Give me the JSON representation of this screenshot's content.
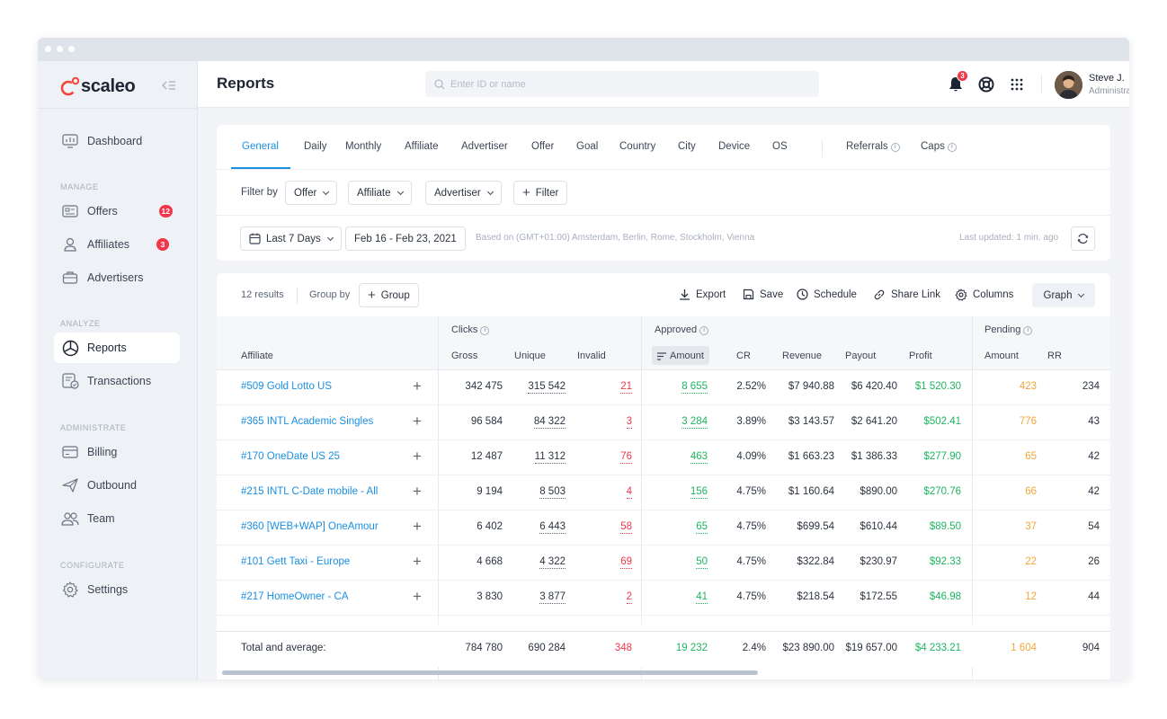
{
  "app": {
    "logo_text": "scaleo",
    "page_title": "Reports"
  },
  "search": {
    "placeholder": "Enter ID or name"
  },
  "notifications": {
    "count": "3"
  },
  "user": {
    "name": "Steve J.",
    "role": "Administrator"
  },
  "sidebar": {
    "sections": {
      "manage": "MANAGE",
      "analyze": "ANALYZE",
      "administrate": "ADMINISTRATE",
      "configurate": "CONFIGURATE"
    },
    "items": {
      "dashboard": {
        "label": "Dashboard",
        "icon": "dashboard-icon"
      },
      "offers": {
        "label": "Offers",
        "badge": "12",
        "icon": "offers-icon"
      },
      "affiliates": {
        "label": "Affiliates",
        "badge": "3",
        "icon": "affiliates-icon"
      },
      "advertisers": {
        "label": "Advertisers",
        "icon": "advertisers-icon"
      },
      "reports": {
        "label": "Reports",
        "icon": "reports-icon"
      },
      "transactions": {
        "label": "Transactions",
        "icon": "transactions-icon"
      },
      "billing": {
        "label": "Billing",
        "icon": "billing-icon"
      },
      "outbound": {
        "label": "Outbound",
        "icon": "outbound-icon"
      },
      "team": {
        "label": "Team",
        "icon": "team-icon"
      },
      "settings": {
        "label": "Settings",
        "icon": "settings-icon"
      }
    }
  },
  "tabs": {
    "general": "General",
    "daily": "Daily",
    "monthly": "Monthly",
    "affiliate": "Affiliate",
    "advertiser": "Advertiser",
    "offer": "Offer",
    "goal": "Goal",
    "country": "Country",
    "city": "City",
    "device": "Device",
    "os": "OS",
    "referrals": "Referrals",
    "caps": "Caps"
  },
  "filters": {
    "label": "Filter by",
    "offer": "Offer",
    "affiliate": "Affiliate",
    "advertiser": "Advertiser",
    "add": "Filter"
  },
  "date": {
    "range_label": "Last 7 Days",
    "range_value": "Feb 16 - Feb 23, 2021",
    "timezone": "Based on (GMT+01:00) Amsterdam, Berlin, Rome, Stockholm, Vienna",
    "updated": "Last updated: 1 min. ago"
  },
  "toolbar": {
    "results": "12 results",
    "group_by": "Group by",
    "group_btn": "Group",
    "export": "Export",
    "save": "Save",
    "schedule": "Schedule",
    "share": "Share Link",
    "columns": "Columns",
    "graph": "Graph"
  },
  "table": {
    "groups": {
      "clicks": "Clicks",
      "approved": "Approved",
      "pending": "Pending"
    },
    "headers": {
      "affiliate": "Affiliate",
      "gross": "Gross",
      "unique": "Unique",
      "invalid": "Invalid",
      "amount": "Amount",
      "cr": "CR",
      "revenue": "Revenue",
      "payout": "Payout",
      "profit": "Profit",
      "p_amount": "Amount",
      "rr": "RR"
    },
    "rows": [
      {
        "affiliate": "#509  Gold Lotto US",
        "gross": "342 475",
        "unique": "315 542",
        "invalid": "21",
        "amount": "8 655",
        "cr": "2.52%",
        "revenue": "$7 940.88",
        "payout": "$6 420.40",
        "profit": "$1 520.30",
        "p_amount": "423",
        "rr": "234"
      },
      {
        "affiliate": "#365  INTL Academic Singles",
        "gross": "96 584",
        "unique": "84 322",
        "invalid": "3",
        "amount": "3 284",
        "cr": "3.89%",
        "revenue": "$3 143.57",
        "payout": "$2 641.20",
        "profit": "$502.41",
        "p_amount": "776",
        "rr": "43"
      },
      {
        "affiliate": "#170  OneDate US 25",
        "gross": "12 487",
        "unique": "11 312",
        "invalid": "76",
        "amount": "463",
        "cr": "4.09%",
        "revenue": "$1 663.23",
        "payout": "$1 386.33",
        "profit": "$277.90",
        "p_amount": "65",
        "rr": "42"
      },
      {
        "affiliate": "#215  INTL C-Date mobile - All",
        "gross": "9 194",
        "unique": "8 503",
        "invalid": "4",
        "amount": "156",
        "cr": "4.75%",
        "revenue": "$1 160.64",
        "payout": "$890.00",
        "profit": "$270.76",
        "p_amount": "66",
        "rr": "42"
      },
      {
        "affiliate": "#360  [WEB+WAP] OneAmour",
        "gross": "6 402",
        "unique": "6 443",
        "invalid": "58",
        "amount": "65",
        "cr": "4.75%",
        "revenue": "$699.54",
        "payout": "$610.44",
        "profit": "$89.50",
        "p_amount": "37",
        "rr": "54"
      },
      {
        "affiliate": "#101  Gett Taxi - Europe",
        "gross": "4 668",
        "unique": "4 322",
        "invalid": "69",
        "amount": "50",
        "cr": "4.75%",
        "revenue": "$322.84",
        "payout": "$230.97",
        "profit": "$92.33",
        "p_amount": "22",
        "rr": "26"
      },
      {
        "affiliate": "#217  HomeOwner - CA",
        "gross": "3 830",
        "unique": "3 877",
        "invalid": "2",
        "amount": "41",
        "cr": "4.75%",
        "revenue": "$218.54",
        "payout": "$172.55",
        "profit": "$46.98",
        "p_amount": "12",
        "rr": "44"
      }
    ],
    "total": {
      "label": "Total and average:",
      "gross": "784 780",
      "unique": "690 284",
      "invalid": "348",
      "amount": "19 232",
      "cr": "2.4%",
      "revenue": "$23 890.00",
      "payout": "$19 657.00",
      "profit": "$4 233.21",
      "p_amount": "1 604",
      "rr": "904"
    }
  },
  "colors": {
    "accent": "#1a8fe3",
    "brand": "#f2473a",
    "danger": "#f0384a",
    "success": "#1fb560",
    "warning": "#f5a53a"
  }
}
